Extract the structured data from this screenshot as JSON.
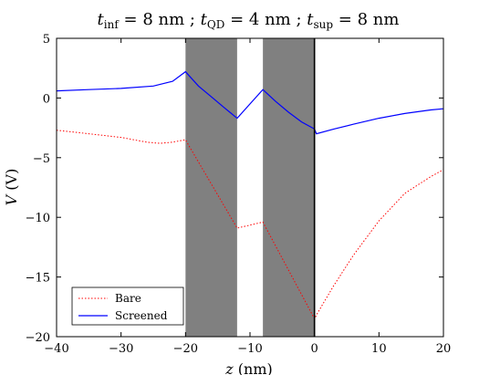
{
  "chart_data": {
    "type": "line",
    "title": "t_inf = 8 nm ; t_QD = 4 nm ; t_sup = 8 nm",
    "xlabel": "z (nm)",
    "ylabel": "V (V)",
    "xlim": [
      -40,
      20
    ],
    "ylim": [
      -20,
      5
    ],
    "xticks": [
      -40,
      -30,
      -20,
      -10,
      0,
      10,
      20
    ],
    "yticks": [
      -20,
      -15,
      -10,
      -5,
      0,
      5
    ],
    "xtick_labels": [
      "−40",
      "−30",
      "−20",
      "−10",
      "0",
      "10",
      "20"
    ],
    "ytick_labels": [
      "−20",
      "−15",
      "−10",
      "−5",
      "0",
      "5"
    ],
    "legend_position": "lower-left",
    "grid": false,
    "shaded_regions": [
      {
        "x_start": -20,
        "x_end": -12,
        "color": "#808080"
      },
      {
        "x_start": -8,
        "x_end": 0,
        "color": "#808080"
      }
    ],
    "vertical_line_x": 0,
    "series": [
      {
        "name": "Bare",
        "color": "#ff0000",
        "style": "dotted",
        "x": [
          -40,
          -35,
          -30,
          -26,
          -24,
          -22,
          -20,
          -12,
          -8,
          0,
          0.5,
          3,
          6,
          10,
          14,
          18,
          20
        ],
        "y": [
          -2.7,
          -3.0,
          -3.3,
          -3.7,
          -3.8,
          -3.7,
          -3.5,
          -10.9,
          -10.4,
          -18.5,
          -18.0,
          -15.7,
          -13.2,
          -10.3,
          -8.0,
          -6.6,
          -6.0
        ]
      },
      {
        "name": "Screened",
        "color": "#0000ff",
        "style": "solid",
        "x": [
          -40,
          -35,
          -30,
          -25,
          -22,
          -20,
          -18,
          -16,
          -14,
          -12,
          -10,
          -8,
          -6,
          -4,
          -2,
          0,
          0.3,
          3,
          6,
          10,
          14,
          18,
          20
        ],
        "y": [
          0.6,
          0.7,
          0.8,
          1.0,
          1.4,
          2.2,
          1.0,
          0.1,
          -0.8,
          -1.7,
          -0.5,
          0.7,
          -0.3,
          -1.2,
          -2.0,
          -2.6,
          -3.0,
          -2.6,
          -2.2,
          -1.7,
          -1.3,
          -1.0,
          -0.9
        ]
      }
    ]
  },
  "title_parts": {
    "t1": "t",
    "s1": "inf",
    "v1": " = 8 nm ; ",
    "t2": "t",
    "s2": "QD",
    "v2": " = 4 nm ; ",
    "t3": "t",
    "s3": "sup",
    "v3": " = 8 nm"
  },
  "ylabel_parts": {
    "var": "V",
    "unit": " (V)"
  },
  "xlabel_parts": {
    "var": "z",
    "unit": " (nm)"
  },
  "legend": {
    "items": [
      {
        "label": "Bare"
      },
      {
        "label": "Screened"
      }
    ]
  }
}
